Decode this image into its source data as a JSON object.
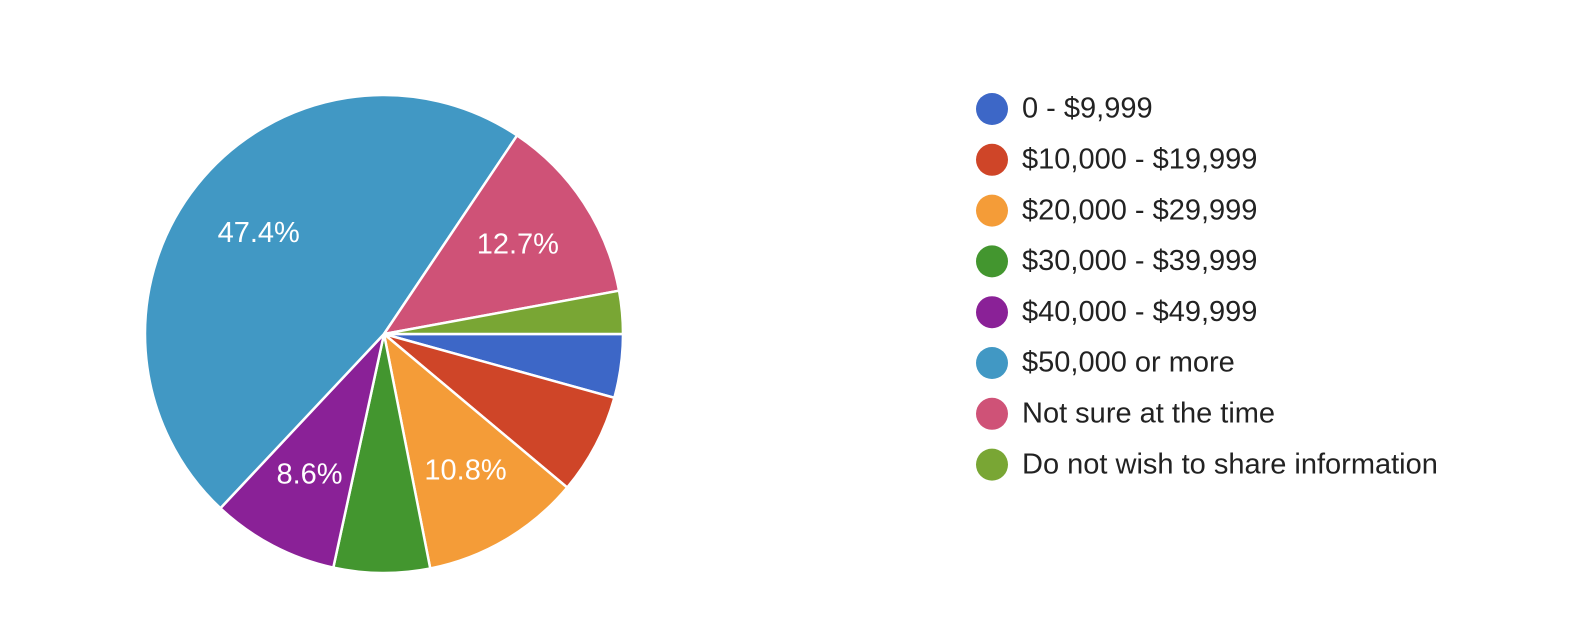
{
  "chart_data": {
    "type": "pie",
    "categories": [
      "0 - $9,999",
      "$10,000 - $19,999",
      "$20,000 - $29,999",
      "$30,000 - $39,999",
      "$40,000 - $49,999",
      "$50,000 or more",
      "Not sure at the time",
      "Do not wish to share information"
    ],
    "values": [
      4.3,
      6.8,
      10.8,
      6.5,
      8.6,
      47.4,
      12.7,
      2.9
    ],
    "value_labels": [
      null,
      null,
      "10.8%",
      null,
      "8.6%",
      "47.4%",
      "12.7%",
      null
    ],
    "colors": [
      "#3d67c7",
      "#cf4528",
      "#f49c38",
      "#43962f",
      "#8a2197",
      "#4198c4",
      "#cf5277",
      "#79a634"
    ],
    "legend": "right"
  }
}
